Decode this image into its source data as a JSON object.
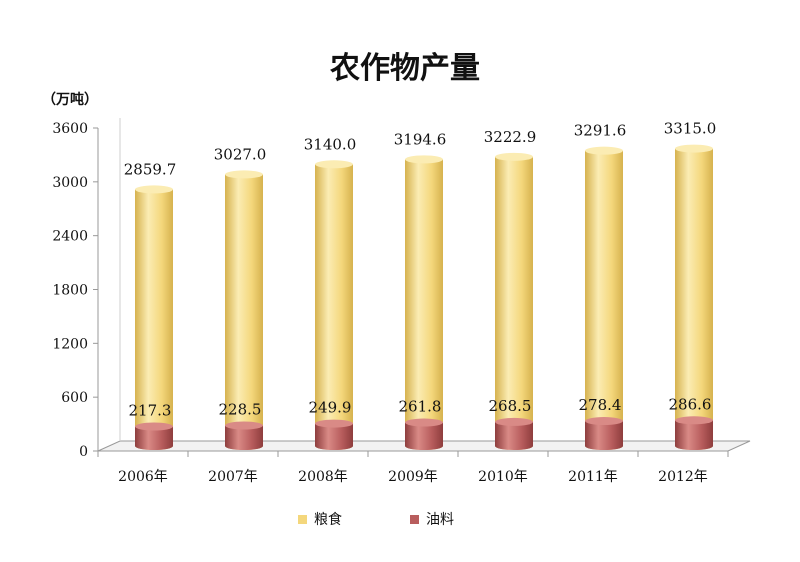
{
  "colors": {
    "grain": "#f4d77c",
    "grain_light": "#fbecb3",
    "grain_dark": "#d6b24e",
    "oil": "#b85d5d",
    "oil_light": "#d98a86",
    "oil_dark": "#8e3d3d",
    "axis": "#999999",
    "floor": "#f2f2f2"
  },
  "chart_data": {
    "type": "bar",
    "title": "农作物产量",
    "unit": "（万吨）",
    "categories": [
      "2006年",
      "2007年",
      "2008年",
      "2009年",
      "2010年",
      "2011年",
      "2012年"
    ],
    "series": [
      {
        "name": "粮食",
        "values": [
          2859.7,
          3027.0,
          3140.0,
          3194.6,
          3222.9,
          3291.6,
          3315.0
        ],
        "labels": [
          "2859.7",
          "3027.0",
          "3140.0",
          "3194.6",
          "3222.9",
          "3291.6",
          "3315.0"
        ]
      },
      {
        "name": "油料",
        "values": [
          217.3,
          228.5,
          249.9,
          261.8,
          268.5,
          278.4,
          286.6
        ],
        "labels": [
          "217.3",
          "228.5",
          "249.9",
          "261.8",
          "268.5",
          "278.4",
          "286.6"
        ]
      }
    ],
    "ylim": [
      0,
      3600
    ],
    "yticks": [
      "0",
      "600",
      "1200",
      "1800",
      "2400",
      "3000",
      "3600"
    ],
    "grid": false,
    "legend_position": "bottom"
  }
}
